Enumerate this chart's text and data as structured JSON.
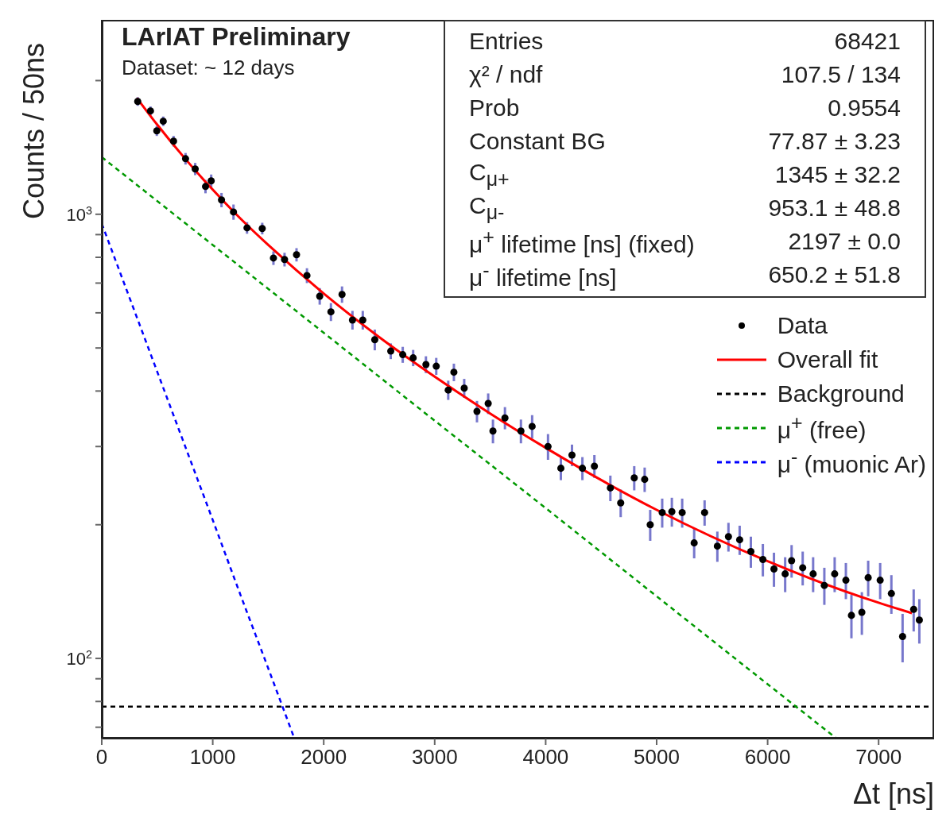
{
  "chart_data": {
    "type": "scatter",
    "title": "LArIAT Preliminary",
    "subtitle": "Dataset: ~ 12 days",
    "xlabel": "Δt [ns]",
    "ylabel": "Counts / 50ns",
    "log": "y",
    "xlim": [
      0,
      7500
    ],
    "xticks": [
      0,
      1000,
      2000,
      3000,
      4000,
      5000,
      6000,
      7000
    ],
    "ylim": [
      66,
      2740
    ],
    "yticks": [
      {
        "value": 70,
        "label": null
      },
      {
        "value": 80,
        "label": null
      },
      {
        "value": 90,
        "label": null
      },
      {
        "value": 100,
        "label": "10$^{2}$"
      },
      {
        "value": 200,
        "label": null
      },
      {
        "value": 300,
        "label": null
      },
      {
        "value": 400,
        "label": null
      },
      {
        "value": 500,
        "label": null
      },
      {
        "value": 600,
        "label": null
      },
      {
        "value": 700,
        "label": null
      },
      {
        "value": 800,
        "label": null
      },
      {
        "value": 900,
        "label": null
      },
      {
        "value": 1000,
        "label": "10$^{3}$"
      },
      {
        "value": 2000,
        "label": null
      }
    ],
    "legend": "right",
    "grid": false,
    "annotations": [
      "Entries",
      "68421",
      "χ² / ndf",
      "107.5 / 134",
      "Prob",
      "0.9554",
      "Constant BG",
      "77.87 ± 3.23",
      "C$_{μ+}$",
      "1345 ± 32.2",
      "C$_{μ-}$",
      "953.1 ± 48.8",
      "μ$^{+}$ lifetime [ns] (fixed)",
      "2197 ± 0.0",
      "μ$^{-}$ lifetime [ns]",
      "650.2 ± 51.8"
    ],
    "series": [
      {
        "name": "Data",
        "type": "scatter",
        "color": "#000000",
        "marker": "circle",
        "x": [
          324,
          439,
          496,
          554,
          647,
          755,
          842,
          935,
          986,
          1079,
          1187,
          1309,
          1446,
          1547,
          1647,
          1755,
          1849,
          1964,
          2065,
          2165,
          2259,
          2352,
          2460,
          2604,
          2712,
          2806,
          2921,
          3014,
          3122,
          3173,
          3266,
          3381,
          3482,
          3525,
          3633,
          3777,
          3878,
          4021,
          4137,
          4237,
          4331,
          4439,
          4583,
          4676,
          4798,
          4892,
          4942,
          5050,
          5137,
          5230,
          5338,
          5432,
          5547,
          5647,
          5748,
          5849,
          5957,
          6057,
          6158,
          6216,
          6316,
          6410,
          6511,
          6604,
          6705,
          6755,
          6849,
          6906,
          7014,
          7115,
          7216,
          7316,
          7367
        ],
        "values": [
          1795,
          1709,
          1541,
          1620,
          1461,
          1334,
          1265,
          1155,
          1189,
          1077,
          1012,
          932,
          929,
          797,
          791,
          811,
          728,
          654,
          603,
          660,
          578,
          578,
          522,
          492,
          483,
          475,
          459,
          455,
          402,
          441,
          406,
          360,
          375,
          325,
          348,
          325,
          333,
          300,
          268,
          287,
          268,
          271,
          242,
          224,
          255,
          253,
          200,
          213,
          214,
          213,
          182,
          213,
          179,
          188,
          185,
          174,
          167,
          159,
          155,
          166,
          160,
          155,
          146,
          155,
          150,
          125,
          127,
          152,
          150,
          140,
          112,
          129,
          122
        ],
        "errors": [
          40,
          40,
          40,
          40,
          40,
          40,
          40,
          40,
          40,
          40,
          40,
          28,
          28,
          28,
          28,
          28,
          28,
          28,
          28,
          28,
          28,
          28,
          28,
          20,
          20,
          20,
          20,
          20,
          20,
          20,
          20,
          20,
          20,
          20,
          20,
          20,
          20,
          20,
          16,
          16,
          16,
          16,
          16,
          16,
          16,
          16,
          16,
          16,
          16,
          16,
          14,
          14,
          14,
          14,
          14,
          14,
          14,
          14,
          14,
          14,
          14,
          14,
          14,
          14,
          14,
          14,
          14,
          14,
          14,
          14,
          14,
          14,
          14
        ]
      },
      {
        "name": "Overall fit",
        "type": "line",
        "color": "#ff0000",
        "line_style": "solid",
        "x": [
          317,
          500,
          750,
          1000,
          1250,
          1500,
          2000,
          2500,
          3000,
          3500,
          4000,
          5000,
          6000,
          7000,
          7300
        ],
        "values": [
          1827,
          1591,
          1335,
          1136,
          978,
          853,
          663,
          529,
          431,
          356,
          298,
          216,
          165.5,
          133.5,
          126.5
        ]
      },
      {
        "name": "Background",
        "type": "line",
        "color": "#000000",
        "line_style": "dashed",
        "x": [
          0,
          7500
        ],
        "values": [
          77.87,
          77.87
        ]
      },
      {
        "name": "μ$^{+}$ (free)",
        "type": "line",
        "color": "#009900",
        "line_style": "dashed",
        "x": [
          0,
          1000,
          2000,
          3000,
          4000,
          5000,
          6000,
          6622
        ],
        "values": [
          1345,
          853,
          541,
          343,
          218,
          138,
          87.5,
          66
        ]
      },
      {
        "name": "μ$^{-}$ (muonic Ar)",
        "type": "line",
        "color": "#0000ff",
        "line_style": "dashed",
        "x": [
          0,
          250,
          500,
          750,
          1000,
          1250,
          1500,
          1736
        ],
        "values": [
          953,
          649,
          442,
          301,
          205,
          139,
          95,
          66
        ]
      }
    ]
  }
}
